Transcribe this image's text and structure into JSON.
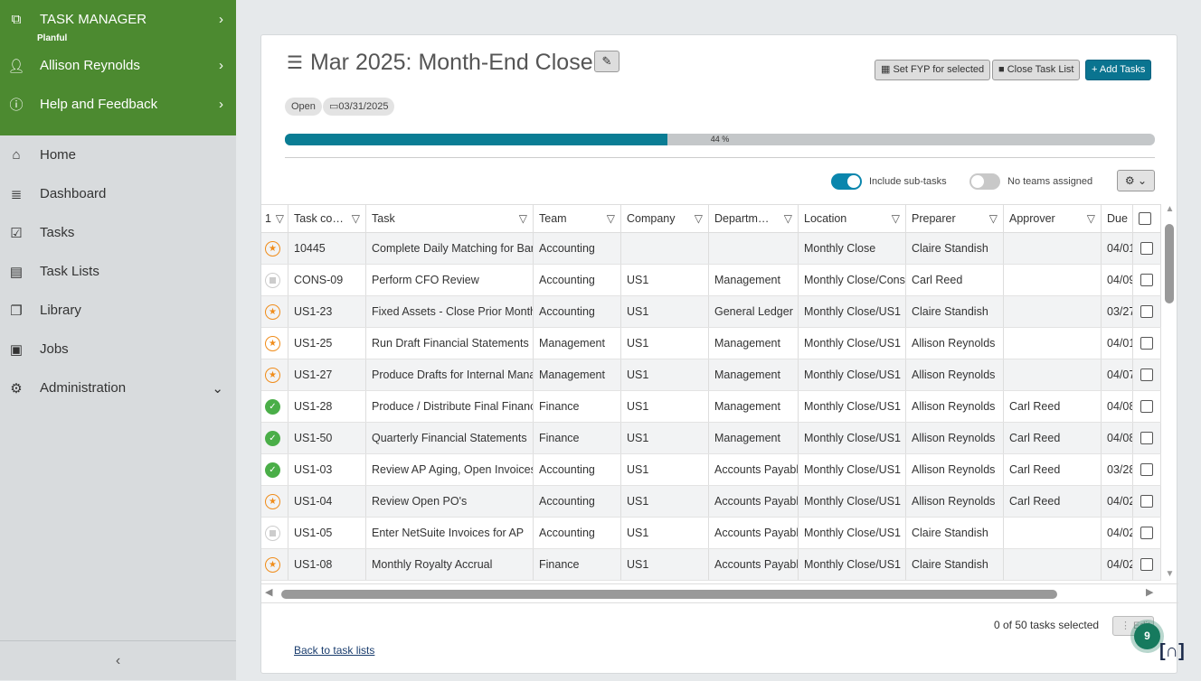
{
  "sidebar": {
    "app_title": "TASK MANAGER",
    "app_sub": "Planful",
    "user": "Allison Reynolds",
    "help": "Help and Feedback",
    "nav": [
      {
        "label": "Home",
        "icon": "⌂"
      },
      {
        "label": "Dashboard",
        "icon": "≣"
      },
      {
        "label": "Tasks",
        "icon": "☑"
      },
      {
        "label": "Task Lists",
        "icon": "▤"
      },
      {
        "label": "Library",
        "icon": "❐"
      },
      {
        "label": "Jobs",
        "icon": "▣"
      },
      {
        "label": "Administration",
        "icon": "⚙"
      }
    ],
    "collapse": "‹"
  },
  "header": {
    "title": "Mar 2025: Month-End Close",
    "set_fyp": "Set FYP for selected",
    "close_list": "Close Task List",
    "add_tasks": "+ Add Tasks",
    "status": "Open",
    "date": "03/31/2025",
    "progress_pct": 44,
    "progress_label": "44 %"
  },
  "toggles": {
    "include_subtasks": "Include sub-tasks",
    "include_subtasks_on": true,
    "no_teams": "No teams assigned",
    "no_teams_on": false
  },
  "table": {
    "columns": [
      "1",
      "Task co…",
      "Task",
      "Team",
      "Company",
      "Departm…",
      "Location",
      "Preparer",
      "Approver",
      "Due"
    ],
    "rows": [
      {
        "status": "star",
        "code": "10445",
        "task": "Complete Daily Matching for Bank Accounts",
        "team": "Accounting",
        "company": "",
        "dept": "",
        "location": "Monthly Close",
        "preparer": "Claire Standish",
        "approver": "",
        "due": "04/01"
      },
      {
        "status": "none",
        "code": "CONS-09",
        "task": "Perform CFO Review",
        "team": "Accounting",
        "company": "US1",
        "dept": "Management",
        "location": "Monthly Close/Consolidation",
        "preparer": "Carl Reed",
        "approver": "",
        "due": "04/09"
      },
      {
        "status": "star",
        "code": "US1-23",
        "task": "Fixed Assets - Close Prior Month",
        "team": "Accounting",
        "company": "US1",
        "dept": "General Ledger",
        "location": "Monthly Close/US1",
        "preparer": "Claire Standish",
        "approver": "",
        "due": "03/27"
      },
      {
        "status": "star",
        "code": "US1-25",
        "task": "Run Draft Financial Statements",
        "team": "Management",
        "company": "US1",
        "dept": "Management",
        "location": "Monthly Close/US1",
        "preparer": "Allison Reynolds",
        "approver": "",
        "due": "04/01"
      },
      {
        "status": "star",
        "code": "US1-27",
        "task": "Produce Drafts for Internal Management",
        "team": "Management",
        "company": "US1",
        "dept": "Management",
        "location": "Monthly Close/US1",
        "preparer": "Allison Reynolds",
        "approver": "",
        "due": "04/07"
      },
      {
        "status": "done",
        "code": "US1-28",
        "task": "Produce / Distribute Final Financials",
        "team": "Finance",
        "company": "US1",
        "dept": "Management",
        "location": "Monthly Close/US1",
        "preparer": "Allison Reynolds",
        "approver": "Carl Reed",
        "due": "04/08"
      },
      {
        "status": "done",
        "code": "US1-50",
        "task": "Quarterly Financial Statements",
        "team": "Finance",
        "company": "US1",
        "dept": "Management",
        "location": "Monthly Close/US1",
        "preparer": "Allison Reynolds",
        "approver": "Carl Reed",
        "due": "04/08"
      },
      {
        "status": "done",
        "code": "US1-03",
        "task": "Review AP Aging, Open Invoices",
        "team": "Accounting",
        "company": "US1",
        "dept": "Accounts Payable",
        "location": "Monthly Close/US1",
        "preparer": "Allison Reynolds",
        "approver": "Carl Reed",
        "due": "03/28"
      },
      {
        "status": "star",
        "code": "US1-04",
        "task": "Review Open PO's",
        "team": "Accounting",
        "company": "US1",
        "dept": "Accounts Payable",
        "location": "Monthly Close/US1",
        "preparer": "Allison Reynolds",
        "approver": "Carl Reed",
        "due": "04/02"
      },
      {
        "status": "none",
        "code": "US1-05",
        "task": "Enter NetSuite Invoices for AP",
        "team": "Accounting",
        "company": "US1",
        "dept": "Accounts Payable",
        "location": "Monthly Close/US1",
        "preparer": "Claire Standish",
        "approver": "",
        "due": "04/02"
      },
      {
        "status": "star",
        "code": "US1-08",
        "task": "Monthly Royalty Accrual",
        "team": "Finance",
        "company": "US1",
        "dept": "Accounts Payable",
        "location": "Monthly Close/US1",
        "preparer": "Claire Standish",
        "approver": "",
        "due": "04/02"
      }
    ]
  },
  "footer": {
    "selected": "0 of 50 tasks selected",
    "edit": "⋮ Edit",
    "back": "Back to task lists",
    "badge": "9"
  }
}
